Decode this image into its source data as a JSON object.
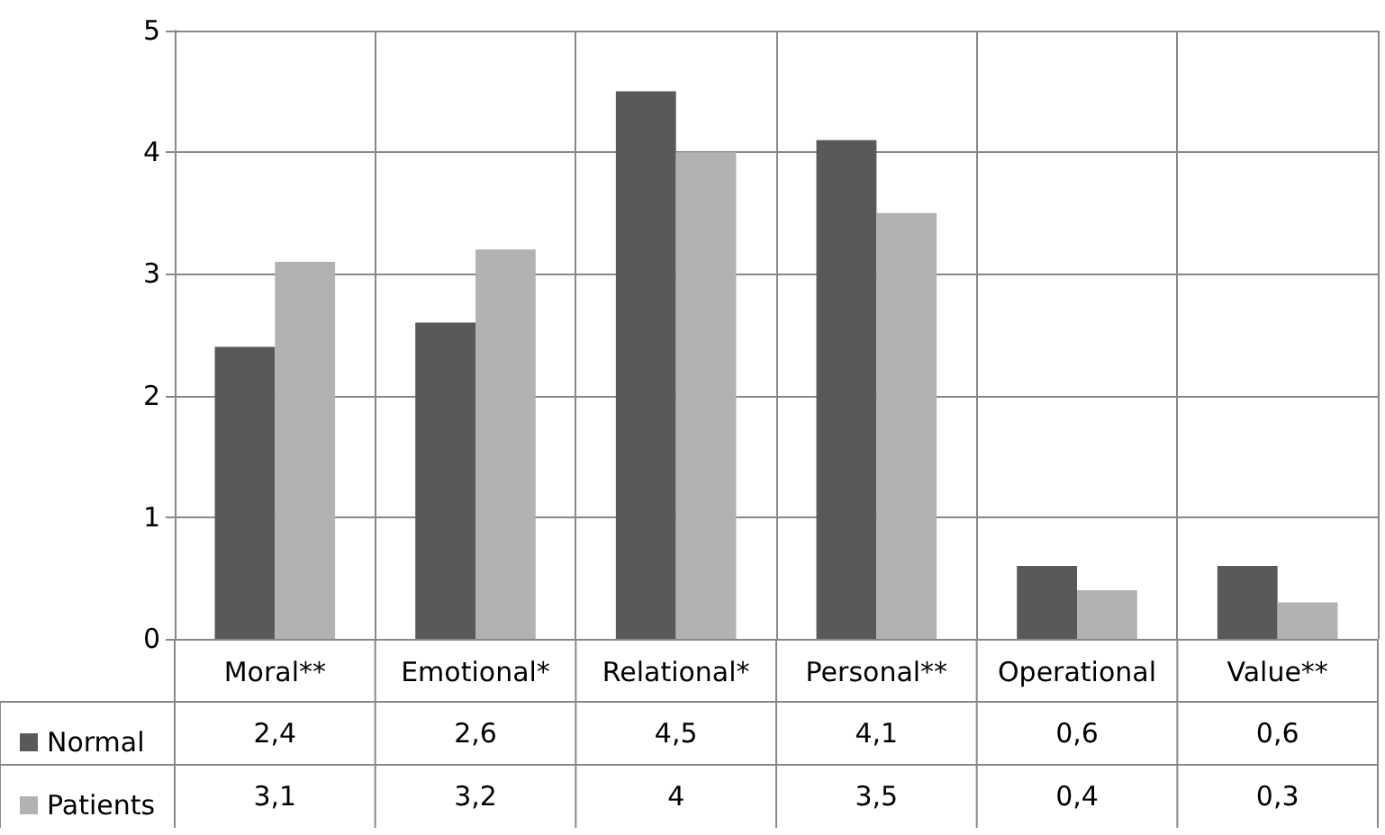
{
  "chart_data": {
    "type": "bar",
    "categories": [
      "Moral**",
      "Emotional*",
      "Relational*",
      "Personal**",
      "Operational",
      "Value**"
    ],
    "series": [
      {
        "name": "Normal",
        "color": "#595959",
        "values": [
          2.4,
          2.6,
          4.5,
          4.1,
          0.6,
          0.6
        ],
        "value_labels": [
          "2,4",
          "2,6",
          "4,5",
          "4,1",
          "0,6",
          "0,6"
        ]
      },
      {
        "name": "Patients",
        "color": "#b2b2b2",
        "values": [
          3.1,
          3.2,
          4,
          3.5,
          0.4,
          0.3
        ],
        "value_labels": [
          "3,1",
          "3,2",
          "4",
          "3,5",
          "0,4",
          "0,3"
        ]
      }
    ],
    "ylim": [
      0,
      5
    ],
    "yticks": [
      0,
      1,
      2,
      3,
      4,
      5
    ],
    "grid": true,
    "legend": "bottom left"
  }
}
